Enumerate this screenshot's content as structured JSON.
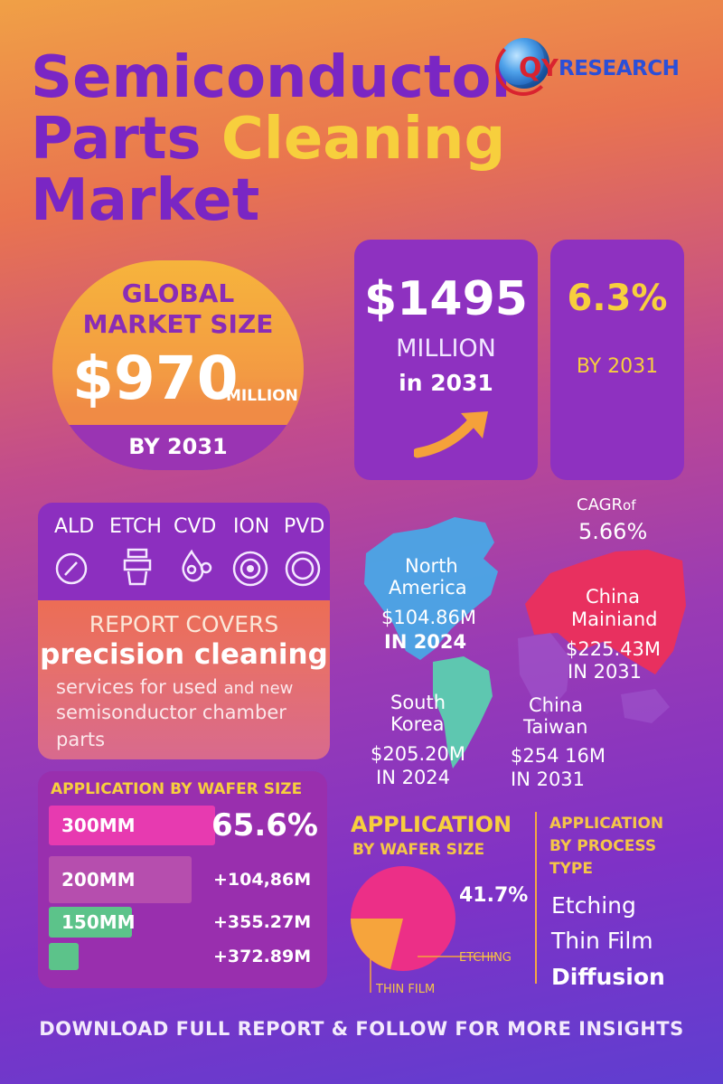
{
  "title": {
    "line1": "Semiconductor",
    "line2a": "Parts",
    "line2b": "Cleaning",
    "line3": "Market"
  },
  "logo": {
    "brand_letter": "Q",
    "brand_y": "Y",
    "brand_text": "RESEARCH",
    "icon": "globe-icon"
  },
  "global_card": {
    "heading1": "GLOBAL",
    "heading2": "MARKET SIZE",
    "amount": "$970",
    "unit": "MILLION",
    "year": "BY 2031"
  },
  "forecast_card": {
    "amount": "$1495",
    "unit": "MILLION",
    "year": "in 2031",
    "icon": "trend-arrow-icon"
  },
  "cagr_card": {
    "rate": "6.3%",
    "year": "BY 2031"
  },
  "tech": {
    "items": [
      {
        "label": "ALD",
        "icon": "gauge-icon"
      },
      {
        "label": "ETCH",
        "icon": "etch-tool-icon"
      },
      {
        "label": "CVD",
        "icon": "molecule-icon"
      },
      {
        "label": "ION",
        "icon": "ion-ring-icon"
      },
      {
        "label": "PVD",
        "icon": "disc-icon"
      }
    ],
    "report_heading": "REPORT COVERS",
    "report_highlight": "precision cleaning",
    "report_body1": "services for used",
    "report_body1b": "and new",
    "report_body2": "semisonductor chamber",
    "report_body3": "parts"
  },
  "map": {
    "cagr_label": "CAGR",
    "cagr_of": "of",
    "cagr_value": "5.66%",
    "regions": [
      {
        "name1": "North",
        "name2": "America",
        "value": "$104.86M",
        "year": "IN 2024"
      },
      {
        "name1": "China",
        "name2": "Mainiand",
        "value": "$225.43M",
        "year": "IN 2031"
      },
      {
        "name1": "South",
        "name2": "Korea",
        "value": "$205.20M",
        "year": "IN 2024"
      },
      {
        "name1": "China",
        "name2": "Taiwan",
        "value": "$254 16M",
        "year": "IN 2031"
      }
    ],
    "colors": {
      "north_america": "#4aa6e6",
      "south_america": "#5ec7b0",
      "asia": "#e8305f"
    }
  },
  "wafer": {
    "heading": "APPLICATION BY WAFER SIZE",
    "bars": [
      {
        "label": "300MM",
        "color": "#e73ab0",
        "value": "65.6%"
      },
      {
        "label": "200MM",
        "color": "#b64eae",
        "value": "+104,86M"
      },
      {
        "label": "150MM",
        "color": "#5cc38a",
        "value": "+355.27M"
      },
      {
        "label": "",
        "color": "#5cc38a",
        "value": "+372.89M"
      }
    ],
    "bar_fraction": [
      1.0,
      0.86,
      0.5,
      0.18
    ]
  },
  "pie": {
    "heading1": "APPLICATION",
    "heading2": "BY WAFER SIZE",
    "percent": "41.7%",
    "label_etching": "ETCHING",
    "label_thinfilm": "THIN FILM",
    "colors": {
      "etching": "#ec2f87",
      "thin_film": "#f6a43c"
    }
  },
  "process": {
    "heading1": "APPLICATION",
    "heading2": "BY PROCESS",
    "heading3": "TYPE",
    "items": [
      "Etching",
      "Thin Film",
      "Diffusion"
    ]
  },
  "footer": "DOWNLOAD FULL REPORT & FOLLOW FOR MORE INSIGHTS"
}
